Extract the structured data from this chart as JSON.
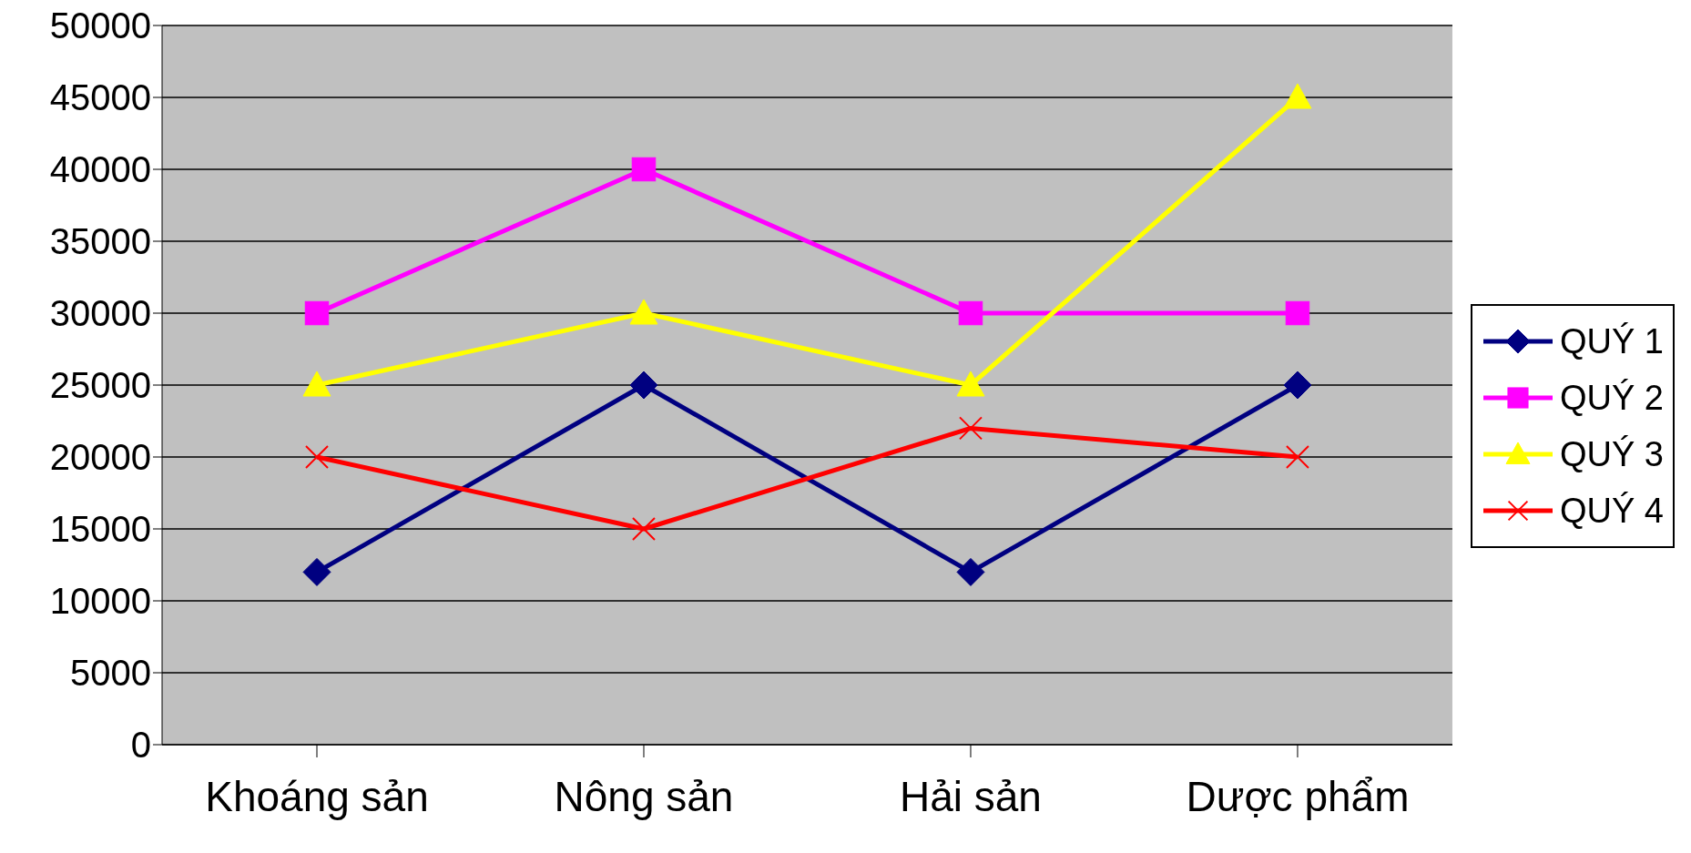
{
  "chart_data": {
    "type": "line",
    "categories": [
      "Khoáng sản",
      "Nông sản",
      "Hải sản",
      "Dược phẩm"
    ],
    "series": [
      {
        "name": "QUÝ 1",
        "color": "#000080",
        "marker": "diamond",
        "values": [
          12000,
          25000,
          12000,
          25000
        ]
      },
      {
        "name": "QUÝ 2",
        "color": "#ff00ff",
        "marker": "square",
        "values": [
          30000,
          40000,
          30000,
          30000
        ]
      },
      {
        "name": "QUÝ 3",
        "color": "#ffff00",
        "marker": "triangle",
        "values": [
          25000,
          30000,
          25000,
          45000
        ]
      },
      {
        "name": "QUÝ 4",
        "color": "#ff0000",
        "marker": "cross",
        "values": [
          20000,
          15000,
          22000,
          20000
        ]
      }
    ],
    "ylim": [
      0,
      50000
    ],
    "yticks": [
      0,
      5000,
      10000,
      15000,
      20000,
      25000,
      30000,
      35000,
      40000,
      45000,
      50000
    ],
    "grid": "y",
    "legend": "right",
    "line_style": "solid"
  }
}
